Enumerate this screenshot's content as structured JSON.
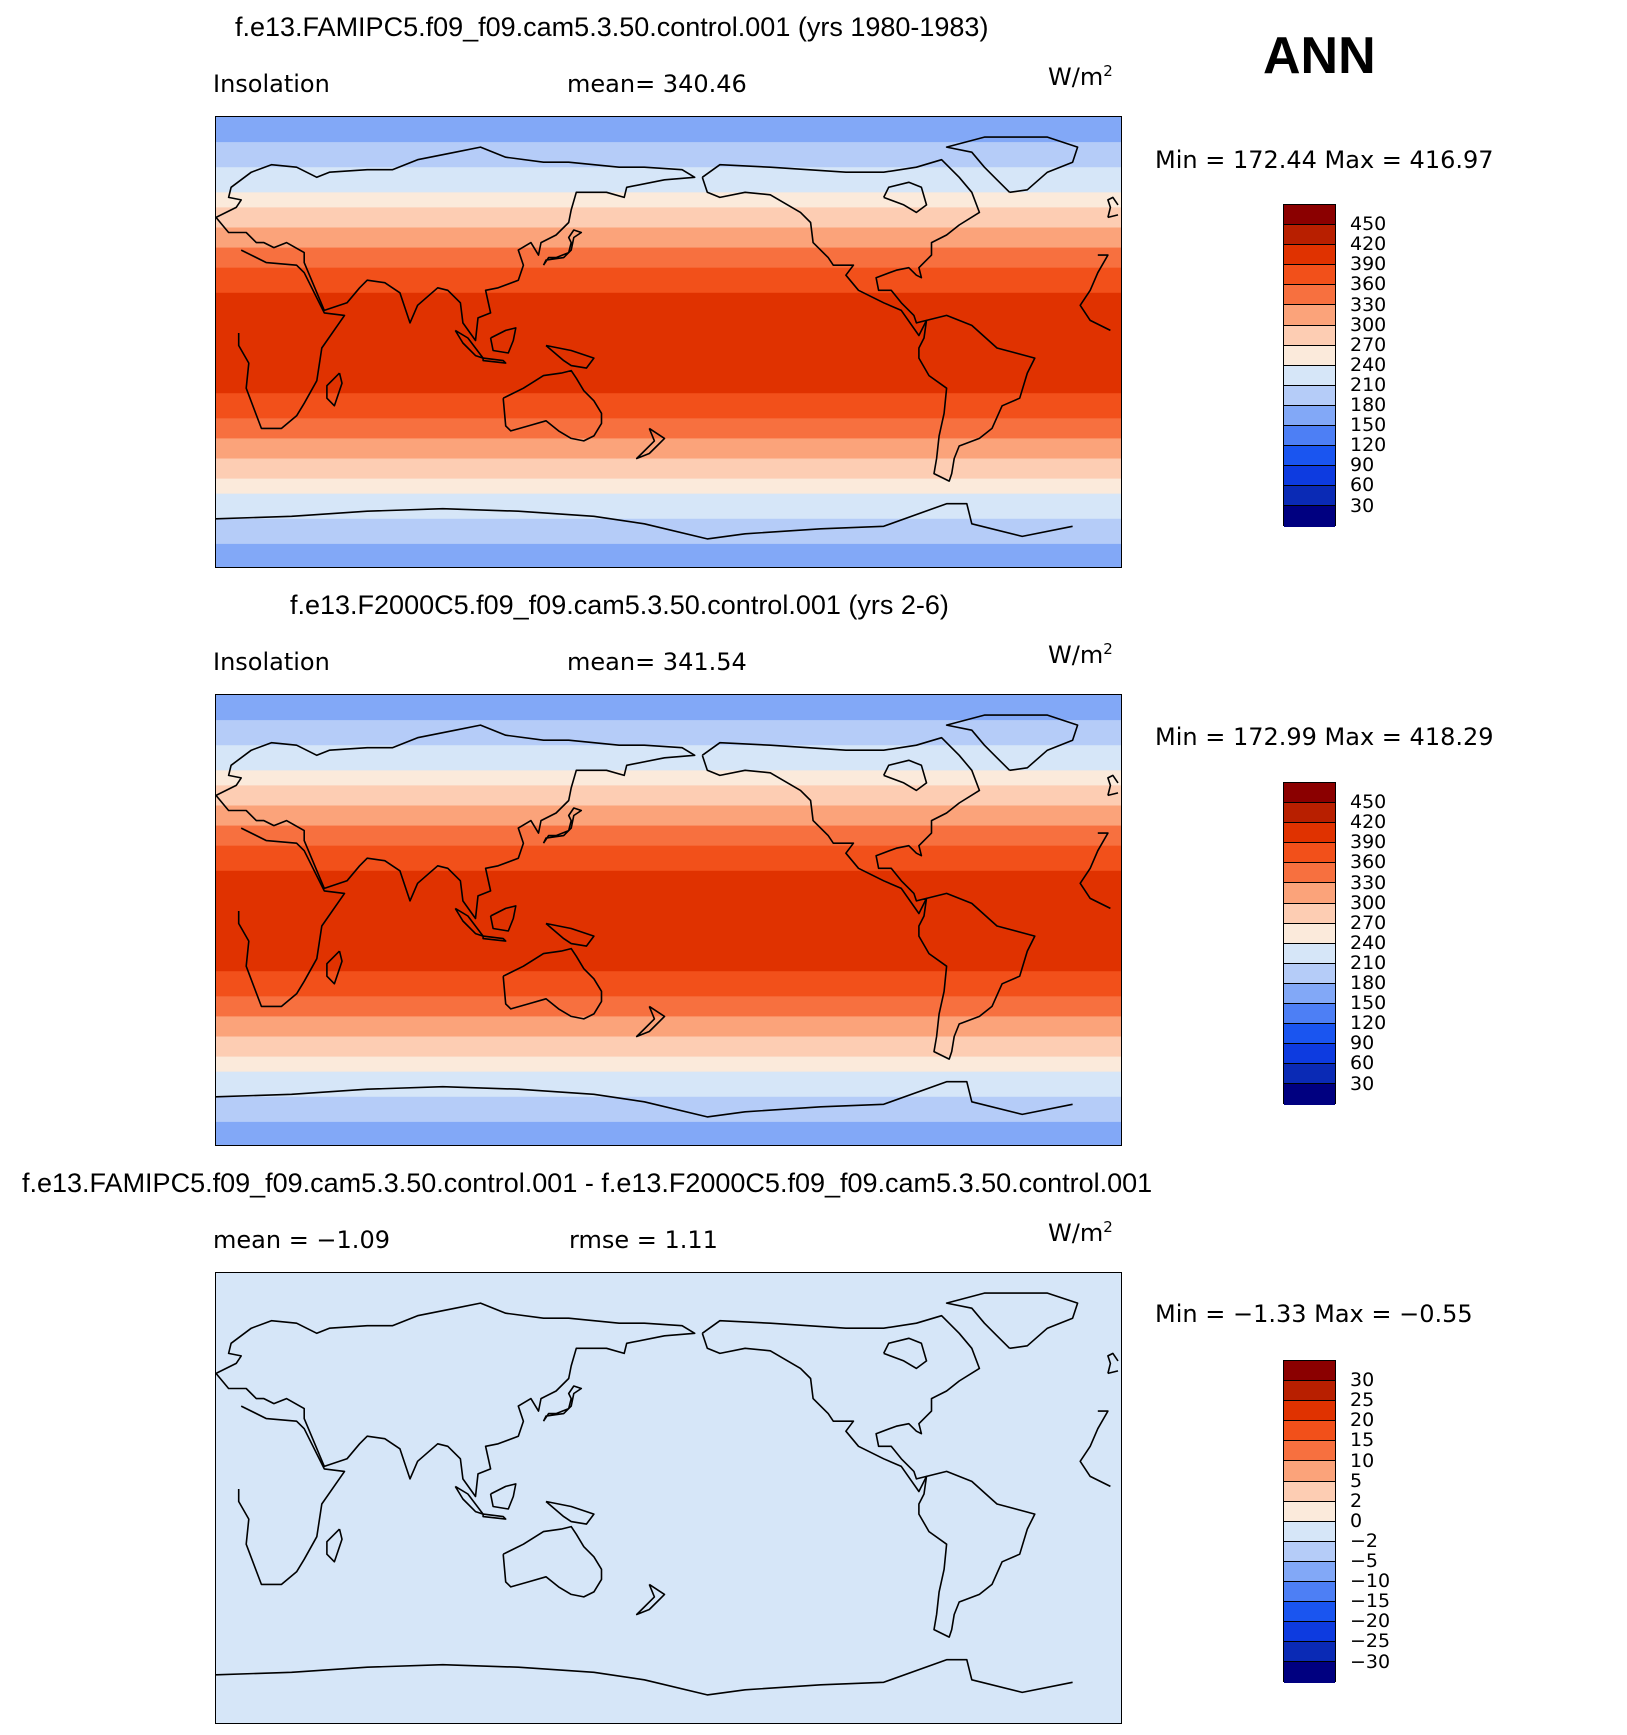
{
  "season": "ANN",
  "units_base": "W/m",
  "units_exp": "2",
  "colors": {
    "abs": [
      "#000080",
      "#0a2ab5",
      "#0d3be0",
      "#1a55f0",
      "#4d7ff5",
      "#82a8f7",
      "#b5ccf8",
      "#d6e6f8",
      "#fbeadb",
      "#fdcdb3",
      "#fba37a",
      "#f7703f",
      "#f2501a",
      "#e03200",
      "#b81f00",
      "#8b0000"
    ],
    "diff": [
      "#000080",
      "#0a2ab5",
      "#0d3be0",
      "#1a55f0",
      "#4d7ff5",
      "#82a8f7",
      "#b5ccf8",
      "#d6e6f8",
      "#fbeadb",
      "#fdcdb3",
      "#fba37a",
      "#f7703f",
      "#f2501a",
      "#e03200",
      "#b81f00",
      "#8b0000"
    ]
  },
  "panels": [
    {
      "title": "f.e13.FAMIPC5.f09_f09.cam5.3.50.control.001 (yrs 1980-1983)",
      "left_label": "Insolation",
      "mid_label": "mean=  340.46",
      "minmax": "Min  =  172.44  Max  =  416.97",
      "ticks": [
        "450",
        "420",
        "390",
        "360",
        "330",
        "300",
        "270",
        "240",
        "210",
        "180",
        "150",
        "120",
        "90",
        "60",
        "30"
      ],
      "kind": "abs"
    },
    {
      "title": "f.e13.F2000C5.f09_f09.cam5.3.50.control.001 (yrs 2-6)",
      "left_label": "Insolation",
      "mid_label": "mean=  341.54",
      "minmax": "Min  =  172.99  Max  =  418.29",
      "ticks": [
        "450",
        "420",
        "390",
        "360",
        "330",
        "300",
        "270",
        "240",
        "210",
        "180",
        "150",
        "120",
        "90",
        "60",
        "30"
      ],
      "kind": "abs"
    },
    {
      "title": "f.e13.FAMIPC5.f09_f09.cam5.3.50.control.001 - f.e13.F2000C5.f09_f09.cam5.3.50.control.001",
      "left_label": "mean  =    −1.09",
      "mid_label": "rmse  =     1.11",
      "minmax": "Min  =    −1.33  Max  =    −0.55",
      "ticks": [
        "30",
        "25",
        "20",
        "15",
        "10",
        "5",
        "2",
        "0",
        "−2",
        "−5",
        "−10",
        "−15",
        "−20",
        "−25",
        "−30"
      ],
      "kind": "diff"
    }
  ],
  "chart_data": [
    {
      "type": "heatmap",
      "title": "f.e13.FAMIPC5.f09_f09.cam5.3.50.control.001 (yrs 1980-1983)",
      "variable": "Insolation",
      "units": "W/m2",
      "mean": 340.46,
      "min": 172.44,
      "max": 416.97,
      "contour_levels": [
        30,
        60,
        90,
        120,
        150,
        180,
        210,
        240,
        270,
        300,
        330,
        360,
        390,
        420,
        450
      ],
      "zonal_bands_N_to_S": [
        {
          "lat_range": [
            90,
            80
          ],
          "value_range": [
            150,
            180
          ]
        },
        {
          "lat_range": [
            80,
            70
          ],
          "value_range": [
            180,
            210
          ]
        },
        {
          "lat_range": [
            70,
            60
          ],
          "value_range": [
            210,
            240
          ]
        },
        {
          "lat_range": [
            60,
            54
          ],
          "value_range": [
            240,
            270
          ]
        },
        {
          "lat_range": [
            54,
            46
          ],
          "value_range": [
            270,
            300
          ]
        },
        {
          "lat_range": [
            46,
            38
          ],
          "value_range": [
            300,
            330
          ]
        },
        {
          "lat_range": [
            38,
            30
          ],
          "value_range": [
            330,
            360
          ]
        },
        {
          "lat_range": [
            30,
            20
          ],
          "value_range": [
            360,
            390
          ]
        },
        {
          "lat_range": [
            20,
            -20
          ],
          "value_range": [
            390,
            420
          ]
        },
        {
          "lat_range": [
            -20,
            -30
          ],
          "value_range": [
            360,
            390
          ]
        },
        {
          "lat_range": [
            -30,
            -38
          ],
          "value_range": [
            330,
            360
          ]
        },
        {
          "lat_range": [
            -38,
            -46
          ],
          "value_range": [
            300,
            330
          ]
        },
        {
          "lat_range": [
            -46,
            -54
          ],
          "value_range": [
            270,
            300
          ]
        },
        {
          "lat_range": [
            -54,
            -60
          ],
          "value_range": [
            240,
            270
          ]
        },
        {
          "lat_range": [
            -60,
            -70
          ],
          "value_range": [
            210,
            240
          ]
        },
        {
          "lat_range": [
            -70,
            -80
          ],
          "value_range": [
            180,
            210
          ]
        },
        {
          "lat_range": [
            -80,
            -90
          ],
          "value_range": [
            150,
            180
          ]
        }
      ]
    },
    {
      "type": "heatmap",
      "title": "f.e13.F2000C5.f09_f09.cam5.3.50.control.001 (yrs 2-6)",
      "variable": "Insolation",
      "units": "W/m2",
      "mean": 341.54,
      "min": 172.99,
      "max": 418.29,
      "contour_levels": [
        30,
        60,
        90,
        120,
        150,
        180,
        210,
        240,
        270,
        300,
        330,
        360,
        390,
        420,
        450
      ],
      "zonal_bands_N_to_S": [
        {
          "lat_range": [
            90,
            80
          ],
          "value_range": [
            150,
            180
          ]
        },
        {
          "lat_range": [
            80,
            70
          ],
          "value_range": [
            180,
            210
          ]
        },
        {
          "lat_range": [
            70,
            60
          ],
          "value_range": [
            210,
            240
          ]
        },
        {
          "lat_range": [
            60,
            54
          ],
          "value_range": [
            240,
            270
          ]
        },
        {
          "lat_range": [
            54,
            46
          ],
          "value_range": [
            270,
            300
          ]
        },
        {
          "lat_range": [
            46,
            38
          ],
          "value_range": [
            300,
            330
          ]
        },
        {
          "lat_range": [
            38,
            30
          ],
          "value_range": [
            330,
            360
          ]
        },
        {
          "lat_range": [
            30,
            20
          ],
          "value_range": [
            360,
            390
          ]
        },
        {
          "lat_range": [
            20,
            -20
          ],
          "value_range": [
            390,
            420
          ]
        },
        {
          "lat_range": [
            -20,
            -30
          ],
          "value_range": [
            360,
            390
          ]
        },
        {
          "lat_range": [
            -30,
            -38
          ],
          "value_range": [
            330,
            360
          ]
        },
        {
          "lat_range": [
            -38,
            -46
          ],
          "value_range": [
            300,
            330
          ]
        },
        {
          "lat_range": [
            -46,
            -54
          ],
          "value_range": [
            270,
            300
          ]
        },
        {
          "lat_range": [
            -54,
            -60
          ],
          "value_range": [
            240,
            270
          ]
        },
        {
          "lat_range": [
            -60,
            -70
          ],
          "value_range": [
            210,
            240
          ]
        },
        {
          "lat_range": [
            -70,
            -80
          ],
          "value_range": [
            180,
            210
          ]
        },
        {
          "lat_range": [
            -80,
            -90
          ],
          "value_range": [
            150,
            180
          ]
        }
      ]
    },
    {
      "type": "heatmap",
      "title": "f.e13.FAMIPC5.f09_f09.cam5.3.50.control.001 - f.e13.F2000C5.f09_f09.cam5.3.50.control.001",
      "units": "W/m2",
      "mean": -1.09,
      "rmse": 1.11,
      "min": -1.33,
      "max": -0.55,
      "contour_levels": [
        -30,
        -25,
        -20,
        -15,
        -10,
        -5,
        -2,
        0,
        2,
        5,
        10,
        15,
        20,
        25,
        30
      ],
      "zonal_bands_N_to_S": [
        {
          "lat_range": [
            90,
            -90
          ],
          "value_range": [
            -2,
            0
          ]
        }
      ]
    }
  ]
}
